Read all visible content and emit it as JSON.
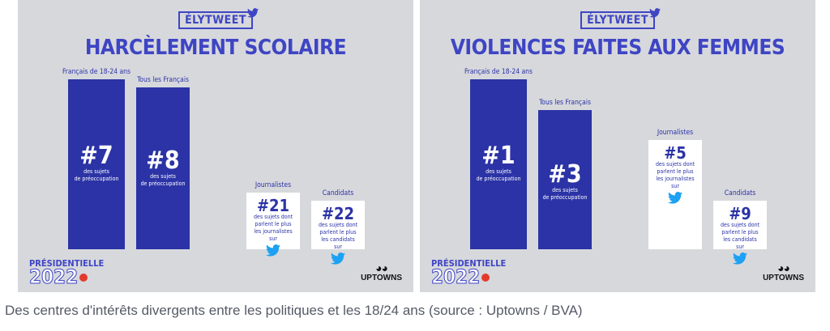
{
  "chart_data": [
    {
      "type": "bar",
      "logo": "ÉLYTWEET",
      "title": "HARCÈLEMENT SCOLAIRE",
      "categories": [
        "Français de 18-24 ans",
        "Tous les Français",
        "Journalistes",
        "Candidats"
      ],
      "values": [
        7,
        8,
        21,
        22
      ],
      "value_labels": [
        "#7",
        "#8",
        "#21",
        "#22"
      ],
      "sublabels": [
        "des sujets\nde préoccupation",
        "des sujets\nde préoccupation",
        "des sujets dont\nparlent le plus\nles journalistes\nsur",
        "des sujets dont\nparlent le plus\nles candidats\nsur"
      ],
      "bar_styles": [
        "dark",
        "dark",
        "light",
        "light"
      ],
      "colors": {
        "dark": "#2b33a6",
        "light": "#ffffff",
        "background": "#d7d8dc"
      }
    },
    {
      "type": "bar",
      "logo": "ÉLYTWEET",
      "title": "VIOLENCES FAITES AUX FEMMES",
      "categories": [
        "Français de 18-24 ans",
        "Tous les Français",
        "Journalistes",
        "Candidats"
      ],
      "values": [
        1,
        3,
        5,
        9
      ],
      "value_labels": [
        "#1",
        "#3",
        "#5",
        "#9"
      ],
      "sublabels": [
        "des sujets\nde préoccupation",
        "des sujets\nde préoccupation",
        "des sujets dont\nparlent le plus\nles journalistes\nsur",
        "des sujets dont\nparlent le plus\nles candidats\nsur"
      ],
      "bar_styles": [
        "dark",
        "dark",
        "light",
        "light"
      ],
      "colors": {
        "dark": "#2b33a6",
        "light": "#ffffff",
        "background": "#d7d8dc"
      }
    }
  ],
  "branding": {
    "presidentielle": "PRÉSIDENTIELLE",
    "year": "2022",
    "uptowns": "UPTOWNS",
    "twitter_icon": "twitter-bird-icon"
  },
  "caption": "Des centres d'intérêts divergents entre les politiques et les 18/24 ans (source : Uptowns / BVA)"
}
